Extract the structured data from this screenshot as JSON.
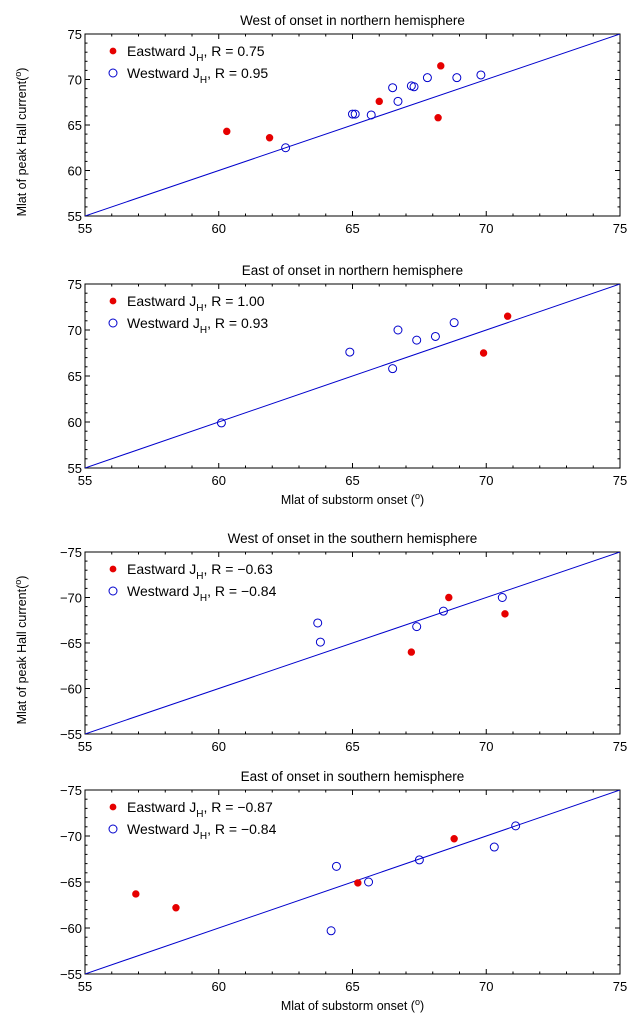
{
  "figure": {
    "ylabel_top": "Mlat of peak Hall current(",
    "ylabel_bottom": "Mlat of peak Hall current(",
    "degree_sup": "o",
    "close_paren": ")"
  },
  "colors": {
    "eastward": "#e60000",
    "westward": "#0000cc",
    "fit": "#0000cc"
  },
  "chart_data": [
    {
      "type": "scatter",
      "title": "West of onset in northern hemisphere",
      "xlabel": "",
      "xlim": [
        55,
        75
      ],
      "ylim": [
        55,
        75
      ],
      "xticks": [
        "55",
        "60",
        "65",
        "70",
        "75"
      ],
      "yticks": [
        "55",
        "60",
        "65",
        "70",
        "75"
      ],
      "fit_line": {
        "x": [
          55,
          75
        ],
        "y": [
          55,
          75
        ]
      },
      "series": [
        {
          "name_prefix": "Eastward J",
          "name_sub": "H",
          "name_suffix": ", R = 0.75",
          "marker": "filled",
          "x": [
            60.3,
            61.9,
            66.0,
            68.2,
            68.3
          ],
          "y": [
            64.3,
            63.6,
            67.6,
            65.8,
            71.5
          ]
        },
        {
          "name_prefix": "Westward J",
          "name_sub": "H",
          "name_suffix": ", R = 0.95",
          "marker": "open",
          "x": [
            62.5,
            65.0,
            65.1,
            65.7,
            66.5,
            66.7,
            67.2,
            67.3,
            67.8,
            68.9,
            69.8
          ],
          "y": [
            62.5,
            66.2,
            66.2,
            66.1,
            69.1,
            67.6,
            69.3,
            69.2,
            70.2,
            70.2,
            70.5
          ]
        }
      ]
    },
    {
      "type": "scatter",
      "title": "East of onset in northern hemisphere",
      "xlabel": "Mlat of substorm onset (",
      "xlim": [
        55,
        75
      ],
      "ylim": [
        55,
        75
      ],
      "xticks": [
        "55",
        "60",
        "65",
        "70",
        "75"
      ],
      "yticks": [
        "55",
        "60",
        "65",
        "70",
        "75"
      ],
      "fit_line": {
        "x": [
          55,
          75
        ],
        "y": [
          55,
          75
        ]
      },
      "series": [
        {
          "name_prefix": "Eastward J",
          "name_sub": "H",
          "name_suffix": ", R = 1.00",
          "marker": "filled",
          "x": [
            69.9,
            70.8
          ],
          "y": [
            67.5,
            71.5
          ]
        },
        {
          "name_prefix": "Westward J",
          "name_sub": "H",
          "name_suffix": ", R = 0.93",
          "marker": "open",
          "x": [
            60.1,
            64.9,
            66.5,
            66.7,
            67.4,
            68.1,
            68.8
          ],
          "y": [
            59.9,
            67.6,
            65.8,
            70.0,
            68.9,
            69.3,
            70.8
          ]
        }
      ]
    },
    {
      "type": "scatter",
      "title": "West of onset in the southern hemisphere",
      "xlabel": "",
      "xlim": [
        55,
        75
      ],
      "ylim": [
        -55,
        -75
      ],
      "xticks": [
        "55",
        "60",
        "65",
        "70",
        "75"
      ],
      "yticks": [
        "−55",
        "−60",
        "−65",
        "−70",
        "−75"
      ],
      "fit_line": {
        "x": [
          55,
          75
        ],
        "y": [
          -55,
          -75
        ]
      },
      "series": [
        {
          "name_prefix": "Eastward J",
          "name_sub": "H",
          "name_suffix": ", R = −0.63",
          "marker": "filled",
          "x": [
            67.2,
            68.6,
            70.7
          ],
          "y": [
            -64.0,
            -70.0,
            -68.2
          ]
        },
        {
          "name_prefix": "Westward J",
          "name_sub": "H",
          "name_suffix": ", R = −0.84",
          "marker": "open",
          "x": [
            63.7,
            63.8,
            67.4,
            68.4,
            70.6
          ],
          "y": [
            -67.2,
            -65.1,
            -66.8,
            -68.5,
            -70.0
          ]
        }
      ]
    },
    {
      "type": "scatter",
      "title": "East of onset in southern hemisphere",
      "xlabel": "Mlat of substorm onset (",
      "xlim": [
        55,
        75
      ],
      "ylim": [
        -55,
        -75
      ],
      "xticks": [
        "55",
        "60",
        "65",
        "70",
        "75"
      ],
      "yticks": [
        "−55",
        "−60",
        "−65",
        "−70",
        "−75"
      ],
      "fit_line": {
        "x": [
          55,
          75
        ],
        "y": [
          -55,
          -75
        ]
      },
      "series": [
        {
          "name_prefix": "Eastward J",
          "name_sub": "H",
          "name_suffix": ", R = −0.87",
          "marker": "filled",
          "x": [
            56.9,
            58.4,
            65.2,
            68.8
          ],
          "y": [
            -63.7,
            -62.2,
            -64.9,
            -69.7
          ]
        },
        {
          "name_prefix": "Westward J",
          "name_sub": "H",
          "name_suffix": ", R = −0.84",
          "marker": "open",
          "x": [
            64.2,
            64.4,
            65.6,
            67.5,
            70.3,
            71.1
          ],
          "y": [
            -59.7,
            -66.7,
            -65.0,
            -67.4,
            -68.8,
            -71.1
          ]
        }
      ]
    }
  ]
}
